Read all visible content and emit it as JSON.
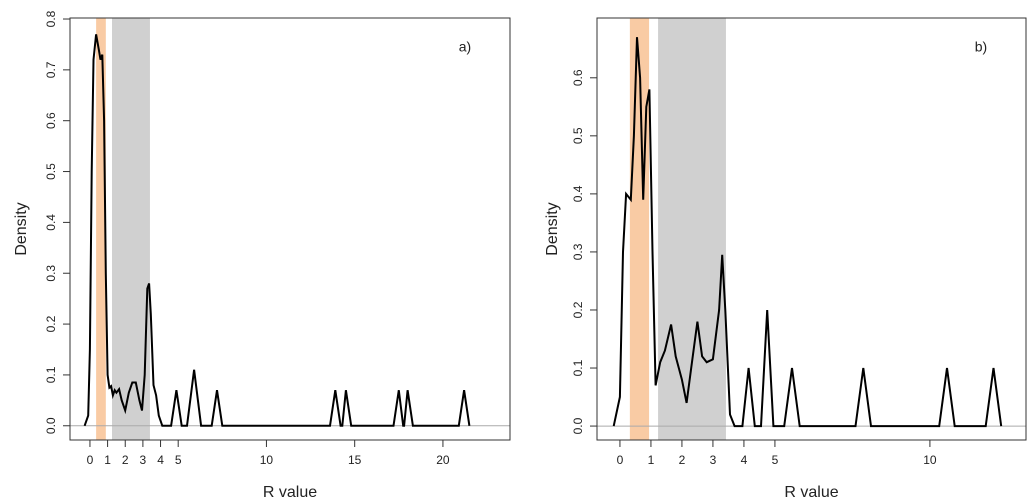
{
  "chart_data": [
    {
      "type": "line",
      "x_label": "R value",
      "y_label": "Density",
      "annotation": "a)",
      "color": "#000000",
      "x": [
        -0.3,
        -0.1,
        0,
        0.1,
        0.2,
        0.35,
        0.5,
        0.6,
        0.7,
        0.8,
        0.9,
        1.0,
        1.1,
        1.2,
        1.3,
        1.4,
        1.5,
        1.65,
        1.8,
        2.0,
        2.2,
        2.4,
        2.6,
        2.8,
        2.95,
        3.1,
        3.25,
        3.35,
        3.45,
        3.6,
        3.75,
        3.9,
        4.1,
        4.6,
        4.9,
        5.2,
        5.5,
        5.9,
        6.3,
        6.9,
        7.2,
        7.5,
        13.6,
        13.9,
        14.2,
        14.3,
        14.5,
        14.8,
        17.2,
        17.5,
        17.75,
        17.8,
        18.0,
        18.3,
        20.9,
        21.2,
        21.5
      ],
      "values": [
        0,
        0.02,
        0.15,
        0.5,
        0.72,
        0.77,
        0.74,
        0.72,
        0.73,
        0.6,
        0.3,
        0.1,
        0.075,
        0.078,
        0.06,
        0.07,
        0.065,
        0.072,
        0.05,
        0.03,
        0.065,
        0.085,
        0.085,
        0.05,
        0.03,
        0.1,
        0.27,
        0.28,
        0.22,
        0.08,
        0.06,
        0.02,
        0,
        0,
        0.07,
        0,
        0,
        0.11,
        0,
        0,
        0.07,
        0,
        0,
        0.07,
        0,
        0,
        0.07,
        0,
        0,
        0.07,
        0,
        0,
        0.07,
        0,
        0,
        0.07,
        0
      ],
      "bands": [
        {
          "from": 0.35,
          "to": 0.9,
          "color": "#f9cba4"
        },
        {
          "from": 1.25,
          "to": 3.4,
          "color": "#d0d0d0"
        }
      ],
      "xlim": [
        -1.13,
        23.8
      ],
      "ylim": [
        -0.028,
        0.802
      ],
      "xticks": [
        0,
        1,
        2,
        3,
        4,
        5,
        10,
        15,
        20
      ],
      "yticks": [
        {
          "value": 0,
          "label": "0.0"
        },
        0.1,
        0.2,
        0.3,
        0.4,
        0.5,
        0.6,
        0.7,
        0.8
      ]
    },
    {
      "type": "line",
      "x_label": "R value",
      "y_label": "Density",
      "annotation": "b)",
      "color": "#000000",
      "x": [
        -0.2,
        0,
        0.1,
        0.2,
        0.35,
        0.45,
        0.55,
        0.65,
        0.75,
        0.85,
        0.95,
        1.05,
        1.15,
        1.3,
        1.45,
        1.65,
        1.8,
        1.9,
        2.0,
        2.15,
        2.3,
        2.5,
        2.65,
        2.8,
        3.0,
        3.2,
        3.3,
        3.4,
        3.55,
        3.7,
        3.95,
        4.15,
        4.35,
        4.55,
        4.75,
        4.95,
        5.3,
        5.55,
        5.8,
        7.6,
        7.85,
        8.1,
        10.3,
        10.55,
        10.8,
        11.8,
        12.05,
        12.3
      ],
      "values": [
        0,
        0.05,
        0.3,
        0.4,
        0.39,
        0.5,
        0.67,
        0.6,
        0.39,
        0.55,
        0.58,
        0.3,
        0.07,
        0.11,
        0.13,
        0.175,
        0.12,
        0.1,
        0.08,
        0.04,
        0.1,
        0.18,
        0.12,
        0.11,
        0.115,
        0.2,
        0.295,
        0.2,
        0.02,
        0,
        0,
        0.1,
        0,
        0,
        0.2,
        0,
        0,
        0.1,
        0,
        0,
        0.1,
        0,
        0,
        0.1,
        0,
        0,
        0.1,
        0
      ],
      "bands": [
        {
          "from": 0.32,
          "to": 0.94,
          "color": "#f9cba4"
        },
        {
          "from": 1.23,
          "to": 3.42,
          "color": "#d0d0d0"
        }
      ],
      "xlim": [
        -0.74,
        13.1
      ],
      "ylim": [
        -0.024,
        0.703
      ],
      "xticks": [
        0,
        1,
        2,
        3,
        4,
        5,
        10
      ],
      "yticks": [
        {
          "value": 0,
          "label": "0.0"
        },
        0.1,
        0.2,
        0.3,
        0.4,
        0.5,
        0.6
      ]
    }
  ]
}
